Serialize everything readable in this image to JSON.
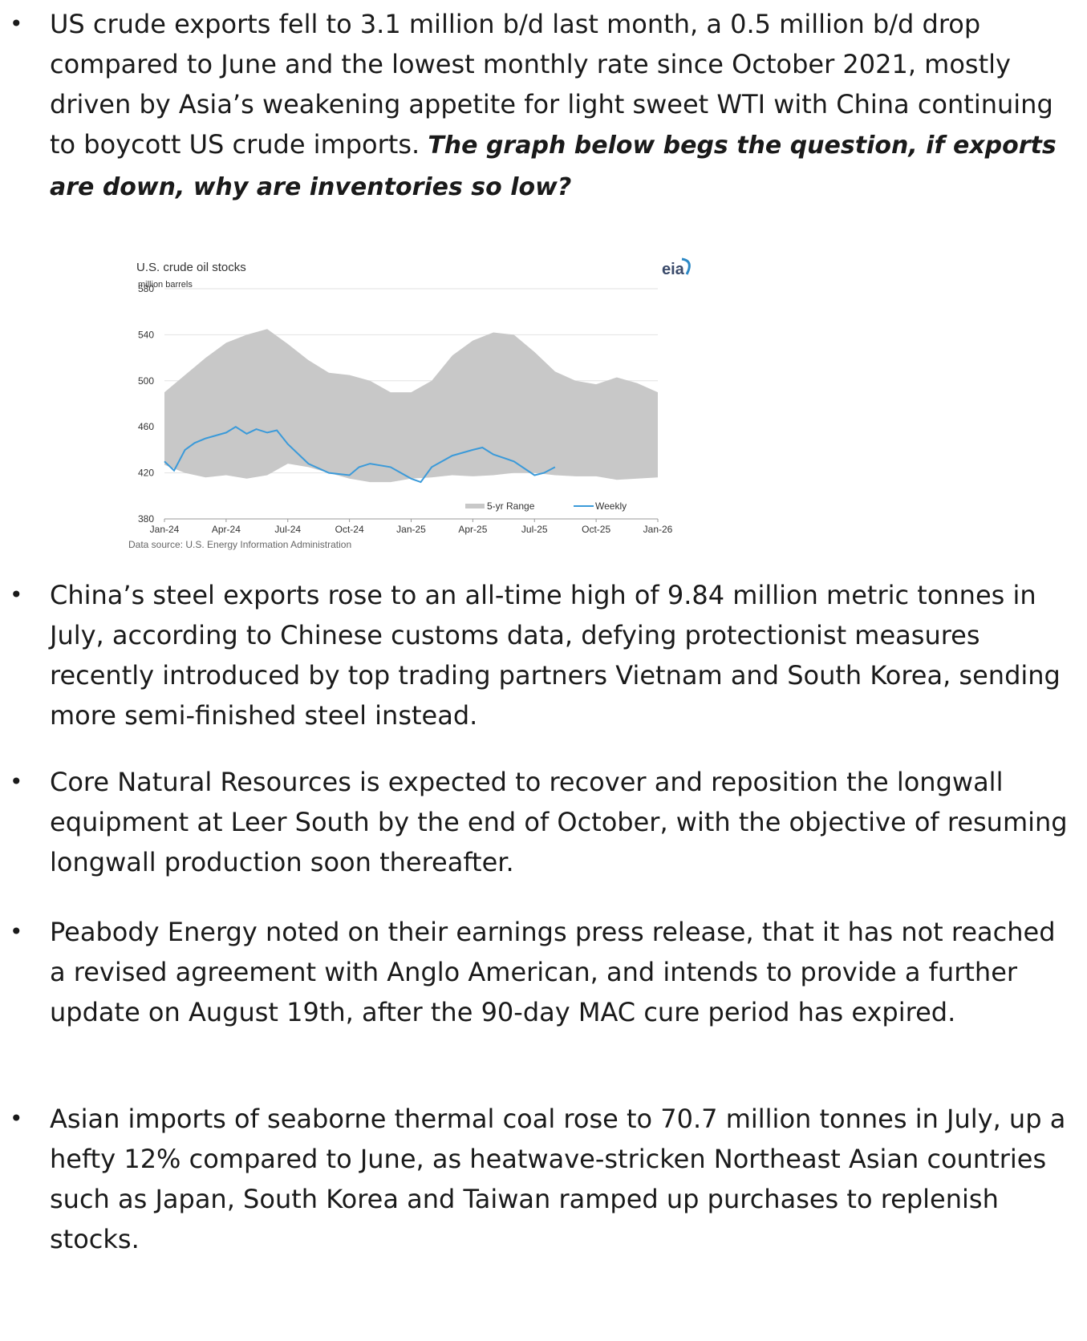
{
  "bullets": [
    {
      "text": "US crude exports fell to 3.1 million b/d last month, a 0.5 million b/d drop compared to June and the lowest monthly rate since October 2021, mostly driven by Asia’s weakening appetite for light sweet WTI with China continuing to boycott US crude imports. ",
      "emphasis": "The graph below begs the question, if exports are down, why are inventories so low?"
    },
    {
      "text": "China’s steel exports rose to an all-time high of 9.84 million metric tonnes in July, according to Chinese customs data, defying protectionist measures recently introduced by top trading partners Vietnam and South Korea, sending more semi-finished steel instead."
    },
    {
      "text": "Core Natural Resources is expected to recover and reposition the longwall equipment at Leer South by the end of October, with the objective of resuming longwall production soon thereafter."
    },
    {
      "text": "Peabody Energy noted on their earnings press release, that it has not reached a revised agreement with Anglo American,  and intends to provide a further update on August 19th, after the 90-day MAC cure period has expired."
    },
    {
      "text": "Asian imports of seaborne thermal coal rose to 70.7 million tonnes in July, up a hefty 12% compared to June, as heatwave-stricken Northeast Asian countries such as Japan, South Korea and Taiwan ramped up purchases to replenish stocks."
    }
  ],
  "bullet_glyph": "•",
  "chart_data": {
    "type": "area",
    "title": "U.S. crude oil stocks",
    "ylabel": "million barrels",
    "logo": "eia",
    "source": "Data source: U.S. Energy Information Administration",
    "ylim": [
      380,
      580
    ],
    "yticks": [
      380,
      420,
      460,
      500,
      540,
      580
    ],
    "xlim": [
      "2024-01",
      "2026-01"
    ],
    "xticks": [
      "Jan-24",
      "Apr-24",
      "Jul-24",
      "Oct-24",
      "Jan-25",
      "Apr-25",
      "Jul-25",
      "Oct-25",
      "Jan-26"
    ],
    "grid": true,
    "legend": "bottom-right",
    "colors": {
      "range": "#c8c8c8",
      "weekly": "#3b9ad9",
      "grid": "#e2e2e2"
    },
    "series": [
      {
        "name": "5-yr Range",
        "x": [
          "2024-01",
          "2024-02",
          "2024-03",
          "2024-04",
          "2024-05",
          "2024-06",
          "2024-07",
          "2024-08",
          "2024-09",
          "2024-10",
          "2024-11",
          "2024-12",
          "2025-01",
          "2025-02",
          "2025-03",
          "2025-04",
          "2025-05",
          "2025-06",
          "2025-07",
          "2025-08",
          "2025-09",
          "2025-10",
          "2025-11",
          "2025-12",
          "2026-01"
        ],
        "high": [
          490,
          505,
          520,
          533,
          540,
          545,
          532,
          518,
          507,
          505,
          500,
          490,
          490,
          500,
          522,
          535,
          542,
          540,
          525,
          508,
          500,
          497,
          503,
          498,
          490
        ],
        "low": [
          427,
          420,
          416,
          418,
          415,
          418,
          428,
          425,
          420,
          415,
          412,
          412,
          415,
          416,
          418,
          417,
          418,
          420,
          420,
          418,
          417,
          417,
          414,
          415,
          416
        ]
      },
      {
        "name": "Weekly",
        "x": [
          "2024-01",
          "2024-01-15",
          "2024-02",
          "2024-02-15",
          "2024-03",
          "2024-04",
          "2024-04-15",
          "2024-05",
          "2024-05-15",
          "2024-06",
          "2024-06-15",
          "2024-07",
          "2024-08",
          "2024-09",
          "2024-10",
          "2024-10-15",
          "2024-11",
          "2024-12",
          "2025-01",
          "2025-01-15",
          "2025-02",
          "2025-03",
          "2025-04",
          "2025-04-15",
          "2025-05",
          "2025-06",
          "2025-07",
          "2025-07-15",
          "2025-08"
        ],
        "values": [
          430,
          422,
          440,
          446,
          450,
          455,
          460,
          454,
          458,
          455,
          457,
          445,
          428,
          420,
          418,
          425,
          428,
          425,
          415,
          412,
          425,
          435,
          440,
          442,
          436,
          430,
          418,
          420,
          425
        ]
      }
    ]
  }
}
